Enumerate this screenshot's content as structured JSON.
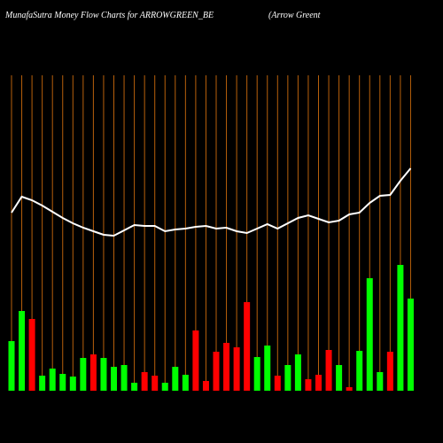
{
  "chart_data": {
    "type": "bar-line",
    "title": "MunafaSutra  Money Flow  Charts for ARROWGREEN_BE",
    "subtitle": "(Arrow  Greent",
    "categories": [
      null,
      null,
      null,
      null,
      null,
      null,
      null,
      null,
      null,
      null,
      null,
      null,
      null,
      null,
      null,
      null,
      null,
      null,
      null,
      null,
      null,
      null,
      null,
      null,
      null,
      null,
      null,
      null,
      null,
      null,
      null,
      null,
      null,
      null,
      null,
      null,
      null,
      null,
      null,
      null
    ],
    "values": [
      56,
      90,
      81,
      17,
      25,
      19,
      16,
      37,
      41,
      37,
      27,
      29,
      9,
      21,
      17,
      9,
      27,
      18,
      68,
      11,
      44,
      54,
      49,
      100,
      38,
      51,
      17,
      29,
      41,
      13,
      18,
      46,
      29,
      4,
      45,
      127,
      21,
      44,
      142,
      104
    ],
    "bar_colors": [
      "#00ff00",
      "#00ff00",
      "#ff0000",
      "#00ff00",
      "#00ff00",
      "#00ff00",
      "#00ff00",
      "#00ff00",
      "#ff0000",
      "#00ff00",
      "#00ff00",
      "#00ff00",
      "#00ff00",
      "#ff0000",
      "#ff0000",
      "#00ff00",
      "#00ff00",
      "#00ff00",
      "#ff0000",
      "#ff0000",
      "#ff0000",
      "#ff0000",
      "#ff0000",
      "#ff0000",
      "#00ff00",
      "#00ff00",
      "#ff0000",
      "#00ff00",
      "#00ff00",
      "#ff0000",
      "#ff0000",
      "#ff0000",
      "#00ff00",
      "#ff0000",
      "#00ff00",
      "#00ff00",
      "#00ff00",
      "#ff0000",
      "#00ff00",
      "#00ff00"
    ],
    "line_values": [
      201,
      219,
      215,
      209,
      202,
      195,
      189,
      184,
      180,
      176,
      175,
      181,
      187,
      186,
      186,
      180,
      182,
      183,
      185,
      186,
      183,
      184,
      180,
      178,
      183,
      188,
      183,
      189,
      195,
      198,
      194,
      190,
      192,
      199,
      201,
      212,
      220,
      221,
      237,
      251
    ],
    "line_color": "#ffffff",
    "grid_color": "#b8600b"
  }
}
